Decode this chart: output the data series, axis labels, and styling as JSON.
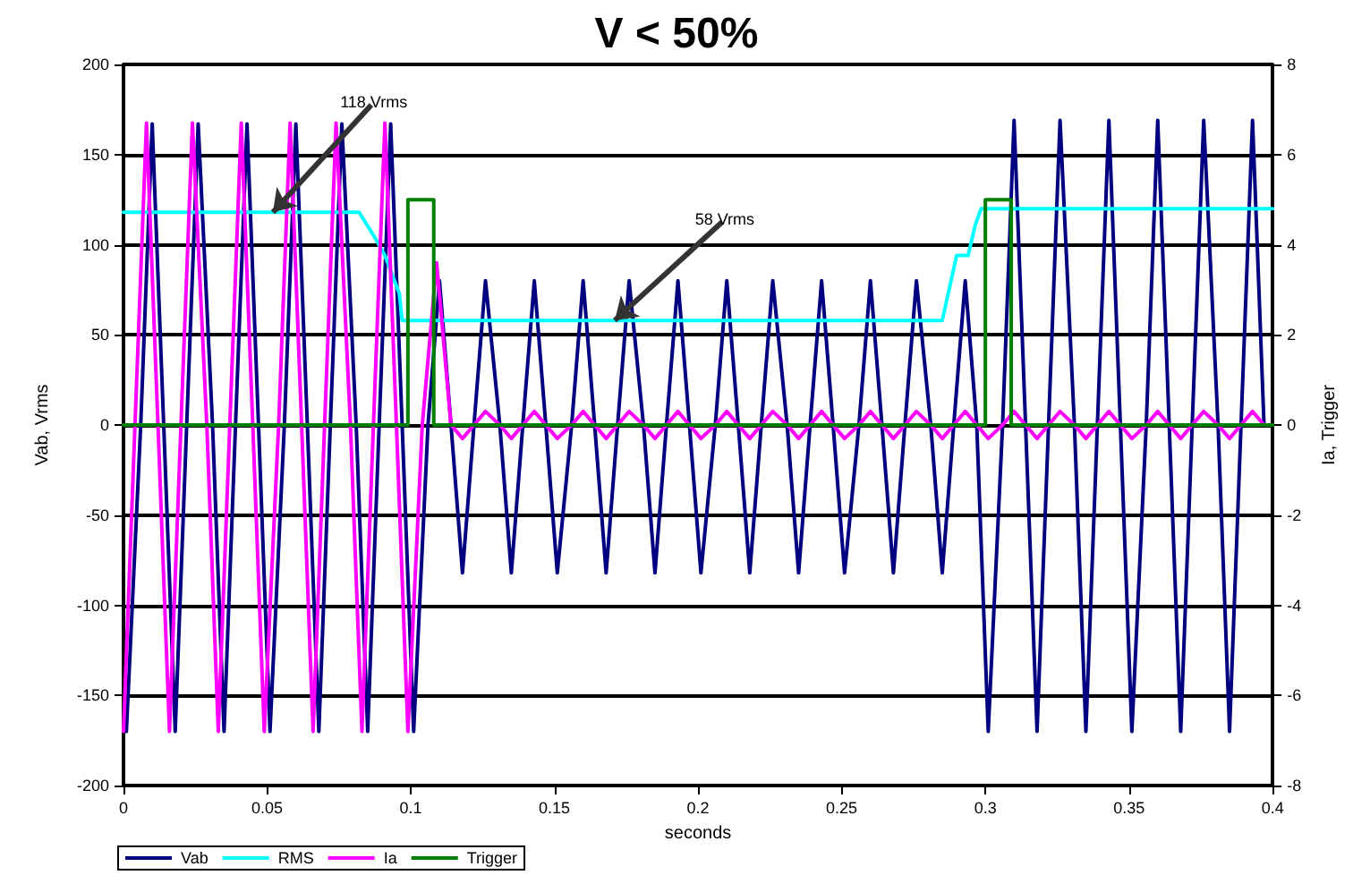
{
  "chart_data": {
    "type": "line",
    "title": "V < 50%",
    "xlabel": "seconds",
    "ylabel": "Vab, Vrms",
    "y2label": "Ia, Trigger",
    "xlim": [
      0,
      0.4
    ],
    "xticks": [
      0,
      0.05,
      0.1,
      0.15,
      0.2,
      0.25,
      0.3,
      0.35,
      0.4
    ],
    "ylim": [
      -200,
      200
    ],
    "yticks": [
      -200,
      -150,
      -100,
      -50,
      0,
      50,
      100,
      150,
      200
    ],
    "y2lim": [
      -8,
      8
    ],
    "y2ticks": [
      -8,
      -6,
      -4,
      -2,
      0,
      2,
      4,
      6,
      8
    ],
    "grid": "y",
    "legend": "bottom left",
    "marker": "none",
    "line_style": "solid",
    "annotations": [
      {
        "text": "118 Vrms",
        "x": 0.052,
        "y": 118
      },
      {
        "text": "58 Vrms",
        "x": 0.171,
        "y": 58
      }
    ],
    "series": [
      {
        "name": "Vab",
        "color": "#000080",
        "x": [
          0.001,
          0.006,
          0.01,
          0.014,
          0.018,
          0.022,
          0.026,
          0.031,
          0.035,
          0.039,
          0.043,
          0.047,
          0.051,
          0.056,
          0.06,
          0.064,
          0.068,
          0.072,
          0.076,
          0.081,
          0.085,
          0.089,
          0.093,
          0.097,
          0.101,
          0.106,
          0.11,
          0.114,
          0.118,
          0.122,
          0.126,
          0.131,
          0.135,
          0.139,
          0.143,
          0.147,
          0.151,
          0.156,
          0.16,
          0.164,
          0.168,
          0.172,
          0.176,
          0.181,
          0.185,
          0.189,
          0.193,
          0.197,
          0.201,
          0.206,
          0.21,
          0.214,
          0.218,
          0.222,
          0.226,
          0.231,
          0.235,
          0.239,
          0.243,
          0.247,
          0.251,
          0.256,
          0.26,
          0.264,
          0.268,
          0.272,
          0.276,
          0.281,
          0.285,
          0.289,
          0.293,
          0.297,
          0.301,
          0.306,
          0.31,
          0.314,
          0.318,
          0.322,
          0.326,
          0.331,
          0.335,
          0.339,
          0.343,
          0.347,
          0.351,
          0.356,
          0.36,
          0.364,
          0.368,
          0.372,
          0.376,
          0.381,
          0.385,
          0.389,
          0.393,
          0.397
        ],
        "values": [
          -170,
          0,
          167,
          0,
          -170,
          0,
          167,
          0,
          -170,
          0,
          167,
          0,
          -170,
          0,
          167,
          0,
          -170,
          0,
          167,
          0,
          -170,
          0,
          167,
          0,
          -170,
          0,
          80,
          0,
          -82,
          0,
          80,
          0,
          -82,
          0,
          80,
          0,
          -82,
          0,
          80,
          0,
          -82,
          0,
          80,
          0,
          -82,
          0,
          80,
          0,
          -82,
          0,
          80,
          0,
          -82,
          0,
          80,
          0,
          -82,
          0,
          80,
          0,
          -82,
          0,
          80,
          0,
          -82,
          0,
          80,
          0,
          -82,
          0,
          80,
          0,
          -170,
          0,
          169,
          0,
          -170,
          0,
          169,
          0,
          -170,
          0,
          169,
          0,
          -170,
          0,
          169,
          0,
          -170,
          0,
          169,
          0,
          -170,
          0,
          169,
          0
        ]
      },
      {
        "name": "RMS",
        "color": "#00ffff",
        "x": [
          0,
          0.082,
          0.0875,
          0.091,
          0.096,
          0.097,
          0.285,
          0.2875,
          0.29,
          0.294,
          0.2965,
          0.2985,
          0.4
        ],
        "values": [
          118,
          118,
          104,
          94,
          73,
          58,
          58,
          76,
          94,
          94,
          111,
          120,
          120
        ]
      },
      {
        "name": "Ia",
        "color": "#ff00ff",
        "axis": "y2",
        "x": [
          0,
          0.004,
          0.008,
          0.012,
          0.016,
          0.02,
          0.024,
          0.029,
          0.033,
          0.037,
          0.041,
          0.045,
          0.049,
          0.054,
          0.058,
          0.062,
          0.066,
          0.07,
          0.074,
          0.079,
          0.083,
          0.087,
          0.091,
          0.095,
          0.099,
          0.104,
          0.109,
          0.114,
          0.118,
          0.122,
          0.126,
          0.131,
          0.135,
          0.139,
          0.143,
          0.147,
          0.151,
          0.156,
          0.16,
          0.164,
          0.168,
          0.172,
          0.176,
          0.181,
          0.185,
          0.189,
          0.193,
          0.197,
          0.201,
          0.206,
          0.21,
          0.214,
          0.218,
          0.222,
          0.226,
          0.231,
          0.235,
          0.239,
          0.243,
          0.247,
          0.251,
          0.256,
          0.26,
          0.264,
          0.268,
          0.272,
          0.276,
          0.281,
          0.285,
          0.289,
          0.293,
          0.297,
          0.301,
          0.306,
          0.31,
          0.314,
          0.318,
          0.322,
          0.326,
          0.331,
          0.335,
          0.339,
          0.343,
          0.347,
          0.351,
          0.356,
          0.36,
          0.364,
          0.368,
          0.372,
          0.376,
          0.381,
          0.385,
          0.389,
          0.393,
          0.397
        ],
        "values": [
          -6.8,
          0,
          6.7,
          0,
          -6.8,
          0,
          6.7,
          0,
          -6.8,
          0,
          6.7,
          0,
          -6.8,
          0,
          6.7,
          0,
          -6.8,
          0,
          6.7,
          0,
          -6.8,
          0,
          6.7,
          0,
          -6.8,
          0,
          3.6,
          0,
          -0.3,
          0,
          0.3,
          0,
          -0.3,
          0,
          0.3,
          0,
          -0.3,
          0,
          0.3,
          0,
          -0.3,
          0,
          0.3,
          0,
          -0.3,
          0,
          0.3,
          0,
          -0.3,
          0,
          0.3,
          0,
          -0.3,
          0,
          0.3,
          0,
          -0.3,
          0,
          0.3,
          0,
          -0.3,
          0,
          0.3,
          0,
          -0.3,
          0,
          0.3,
          0,
          -0.3,
          0,
          0.3,
          0,
          -0.3,
          0,
          0.3,
          0,
          -0.3,
          0,
          0.3,
          0,
          -0.3,
          0,
          0.3,
          0,
          -0.3,
          0,
          0.3,
          0,
          -0.3,
          0,
          0.3,
          0,
          -0.3,
          0,
          0.3,
          0
        ]
      },
      {
        "name": "Trigger",
        "color": "#008000",
        "axis": "y2",
        "x": [
          0,
          0.099,
          0.099,
          0.108,
          0.108,
          0.3,
          0.3,
          0.309,
          0.309,
          0.4
        ],
        "values": [
          0,
          0,
          5,
          5,
          0,
          0,
          5,
          5,
          0,
          0
        ]
      }
    ]
  }
}
